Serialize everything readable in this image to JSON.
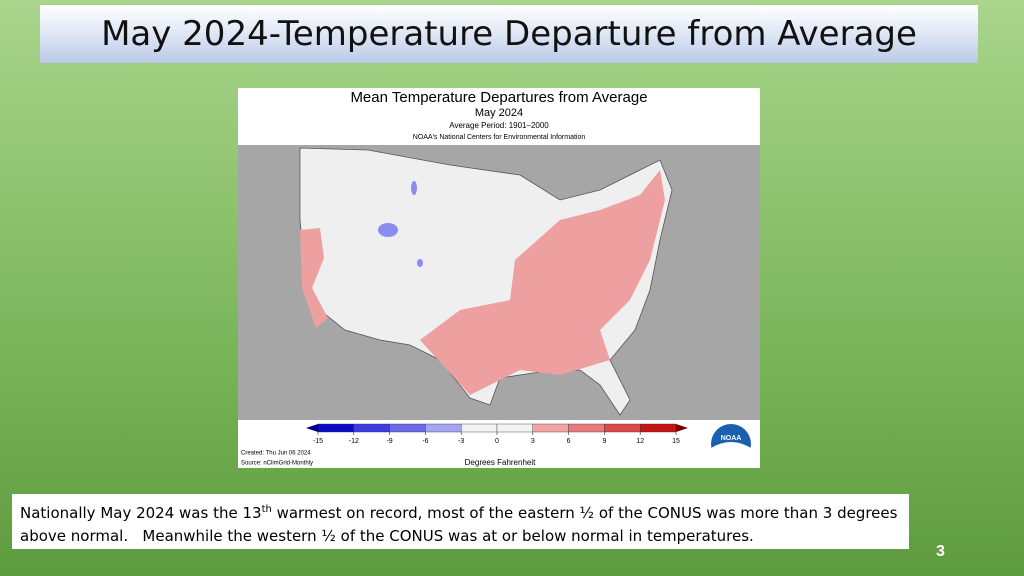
{
  "slide": {
    "title": "May 2024-Temperature Departure from Average",
    "map": {
      "title": "Mean Temperature Departures from Average",
      "subtitle": "May 2024",
      "period": "Average Period: 1901–2000",
      "source_org": "NOAA's National Centers for Environmental Information",
      "colorbar": {
        "ticks": [
          -15,
          -12,
          -9,
          -6,
          -3,
          0,
          3,
          6,
          9,
          12,
          15
        ],
        "colors": [
          "#0a0ac8",
          "#3c3ce0",
          "#6a6aea",
          "#a4a4f2",
          "#f2f2f2",
          "#f2f2f2",
          "#f2a4a4",
          "#e87a7a",
          "#dc4848",
          "#c41414"
        ],
        "label": "Degrees Fahrenheit"
      },
      "created": "Created: Thu Jun 06 2024",
      "source": "Source: nClimGrid-Monthly",
      "logo": "NOAA"
    },
    "caption": {
      "before": "Nationally May 2024 was the 13",
      "sup": "th",
      "after": " warmest on record, most of the eastern ½ of the CONUS was more than 3 degrees above normal.   Meanwhile the western ½ of the CONUS was at or below normal in temperatures."
    },
    "page_number": "3"
  }
}
